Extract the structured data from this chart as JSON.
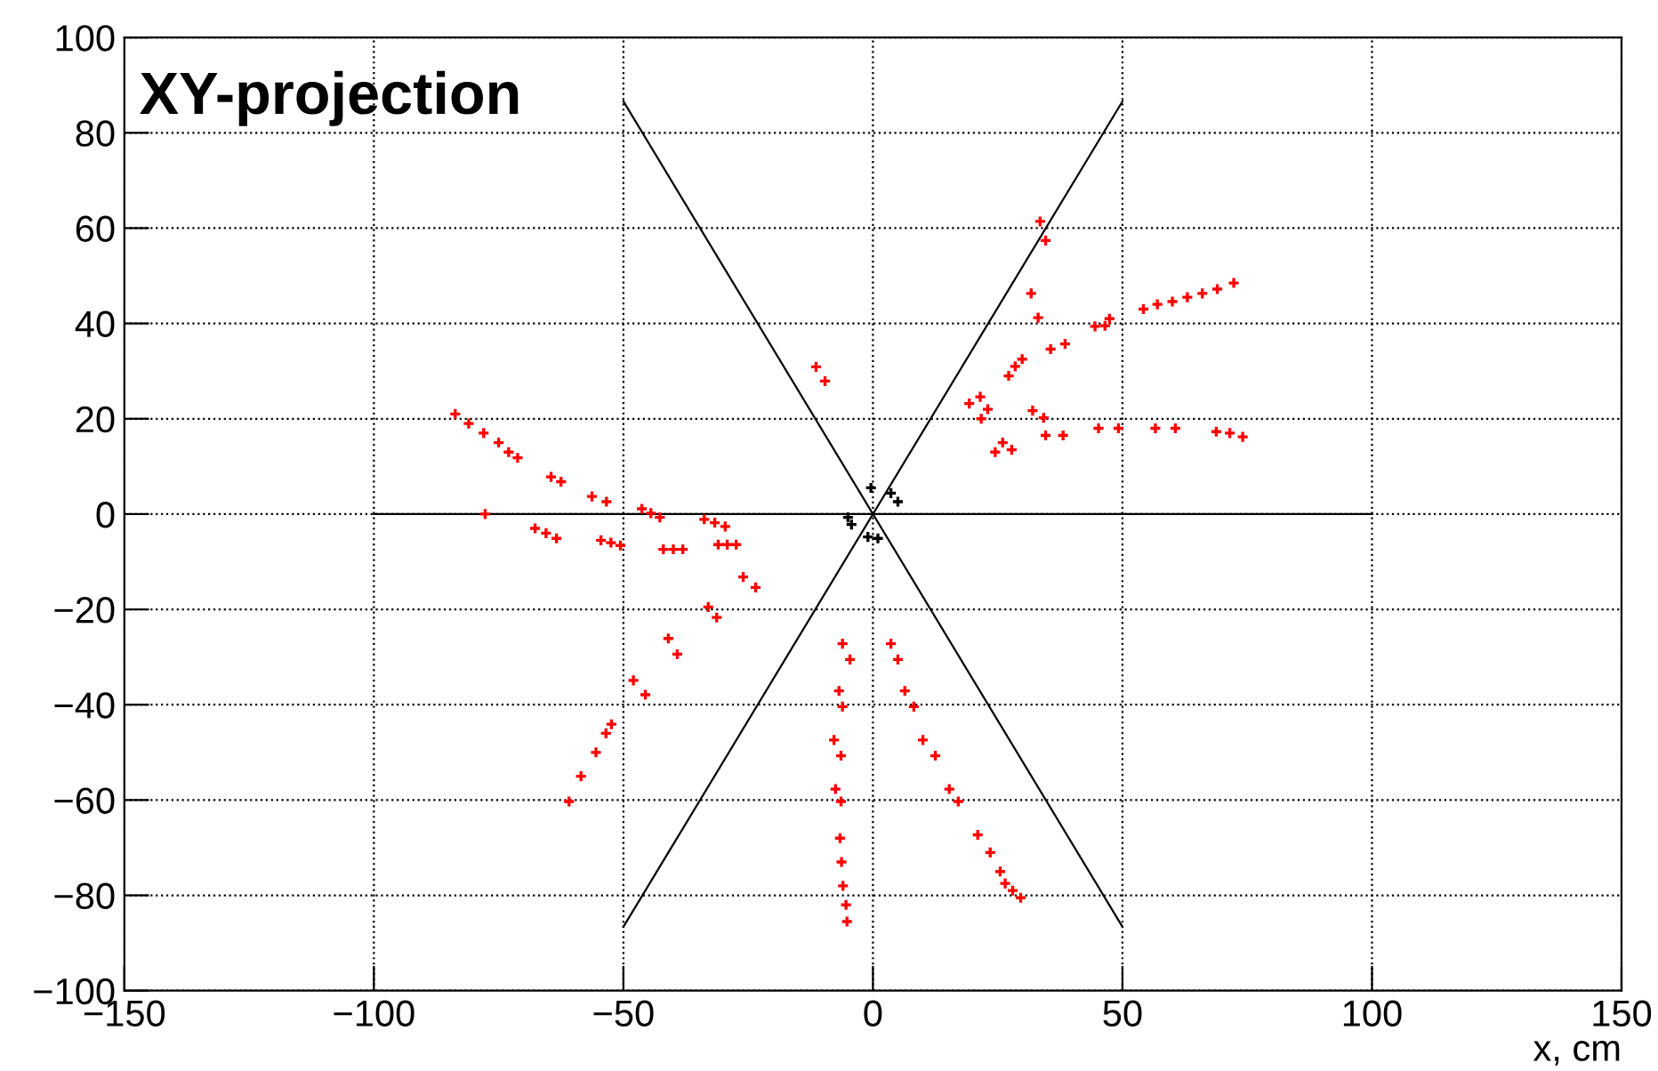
{
  "chart_data": {
    "type": "scatter",
    "title": "XY-projection",
    "xlabel": "x, cm",
    "xlim": [
      -150,
      150
    ],
    "xticks": [
      -150,
      -100,
      -50,
      0,
      50,
      100,
      150
    ],
    "ylim": [
      -100,
      100
    ],
    "yticks": [
      -100,
      -80,
      -60,
      -40,
      -20,
      0,
      20,
      40,
      60,
      80,
      100
    ],
    "grid": true,
    "legend": false,
    "series": [
      {
        "type": "line",
        "color": "#000000",
        "x": [
          -100,
          100
        ],
        "values": [
          0,
          0
        ]
      },
      {
        "type": "line",
        "color": "#000000",
        "x": [
          -50,
          50
        ],
        "values": [
          86.6,
          -86.6
        ]
      },
      {
        "type": "line",
        "color": "#000000",
        "x": [
          -50,
          50
        ],
        "values": [
          -86.6,
          86.6
        ]
      },
      {
        "marker": "cross",
        "color": "#000000",
        "x": [
          -0.4,
          3.6,
          5.0,
          -5.0,
          -4.3,
          -1.0,
          1.0
        ],
        "values": [
          5.5,
          4.4,
          2.6,
          -0.7,
          -2.2,
          -4.8,
          -5.1
        ]
      },
      {
        "marker": "cross",
        "color": "#ff0000",
        "x": [
          -83.7,
          -81,
          -78,
          -75,
          -73,
          -71.2,
          -64.5,
          -62.5,
          -56.3,
          -53.4,
          -46.3,
          -44.5,
          -42.7,
          -33.8,
          -31.7,
          -29.6,
          -77.7,
          -67.7,
          -65.5,
          -63.4,
          -54.5,
          -52.5,
          -50.6,
          -42,
          -40,
          -38.1,
          -31,
          -29.2,
          -27.4,
          -26,
          -23.5,
          -33,
          -31.3,
          -41,
          -39.2,
          -48,
          -45.6,
          -60.9,
          -58.5,
          -55.5,
          -53.5,
          -52.4,
          -6.1,
          -4.6,
          -6.8,
          -6.1,
          -7.8,
          -6.4,
          -7.5,
          -6.4,
          -6.6,
          -6.3,
          -6,
          -5.4,
          -5.2,
          3.6,
          5.0,
          6.4,
          8.2,
          10.0,
          12.5,
          15.3,
          17.1,
          21,
          23.5,
          25.5,
          26.5,
          28,
          29.6,
          -11.4,
          -9.6,
          33.5,
          34.6,
          31.7,
          33.1,
          54.2,
          57,
          60,
          63,
          66,
          69,
          72.3,
          44.5,
          46.5,
          47.4,
          35.6,
          38.5,
          27.2,
          28.5,
          29.9,
          19.3,
          21.5,
          21.7,
          23,
          32,
          34.2,
          24.5,
          26,
          27.8,
          34.6,
          38.1,
          45.2,
          49.2,
          56.6,
          60.6,
          68.8,
          71.5,
          74.1
        ],
        "values": [
          21.0,
          19,
          17,
          15,
          13,
          11.8,
          7.8,
          6.8,
          3.7,
          2.6,
          1.1,
          0.2,
          -0.7,
          -1.1,
          -1.8,
          -2.6,
          0,
          -3.0,
          -4.0,
          -5.1,
          -5.5,
          -6.0,
          -6.6,
          -7.4,
          -7.4,
          -7.4,
          -6.4,
          -6.4,
          -6.4,
          -13.2,
          -15.4,
          -19.5,
          -21.7,
          -26.1,
          -29.4,
          -34.9,
          -37.9,
          -60.3,
          -55,
          -50,
          -46,
          -44.1,
          -27.2,
          -30.5,
          -37.1,
          -40.4,
          -47.4,
          -50.7,
          -57.7,
          -60.3,
          -68,
          -73,
          -78,
          -82,
          -85.5,
          -27.2,
          -30.5,
          -37.1,
          -40.4,
          -47.4,
          -50.7,
          -57.7,
          -60.3,
          -67.3,
          -71,
          -75,
          -77.5,
          -79,
          -80.5,
          30.9,
          27.9,
          61.4,
          57.4,
          46.3,
          41.2,
          43.0,
          44,
          44.6,
          45.5,
          46.3,
          47.2,
          48.5,
          39.4,
          39.5,
          41,
          34.6,
          35.7,
          29,
          31,
          32.5,
          23.2,
          24.6,
          20,
          22,
          21.7,
          20.2,
          13,
          15,
          13.5,
          16.5,
          16.5,
          18.0,
          18.0,
          18.0,
          18.0,
          17.3,
          17.0,
          16.2
        ]
      }
    ]
  }
}
